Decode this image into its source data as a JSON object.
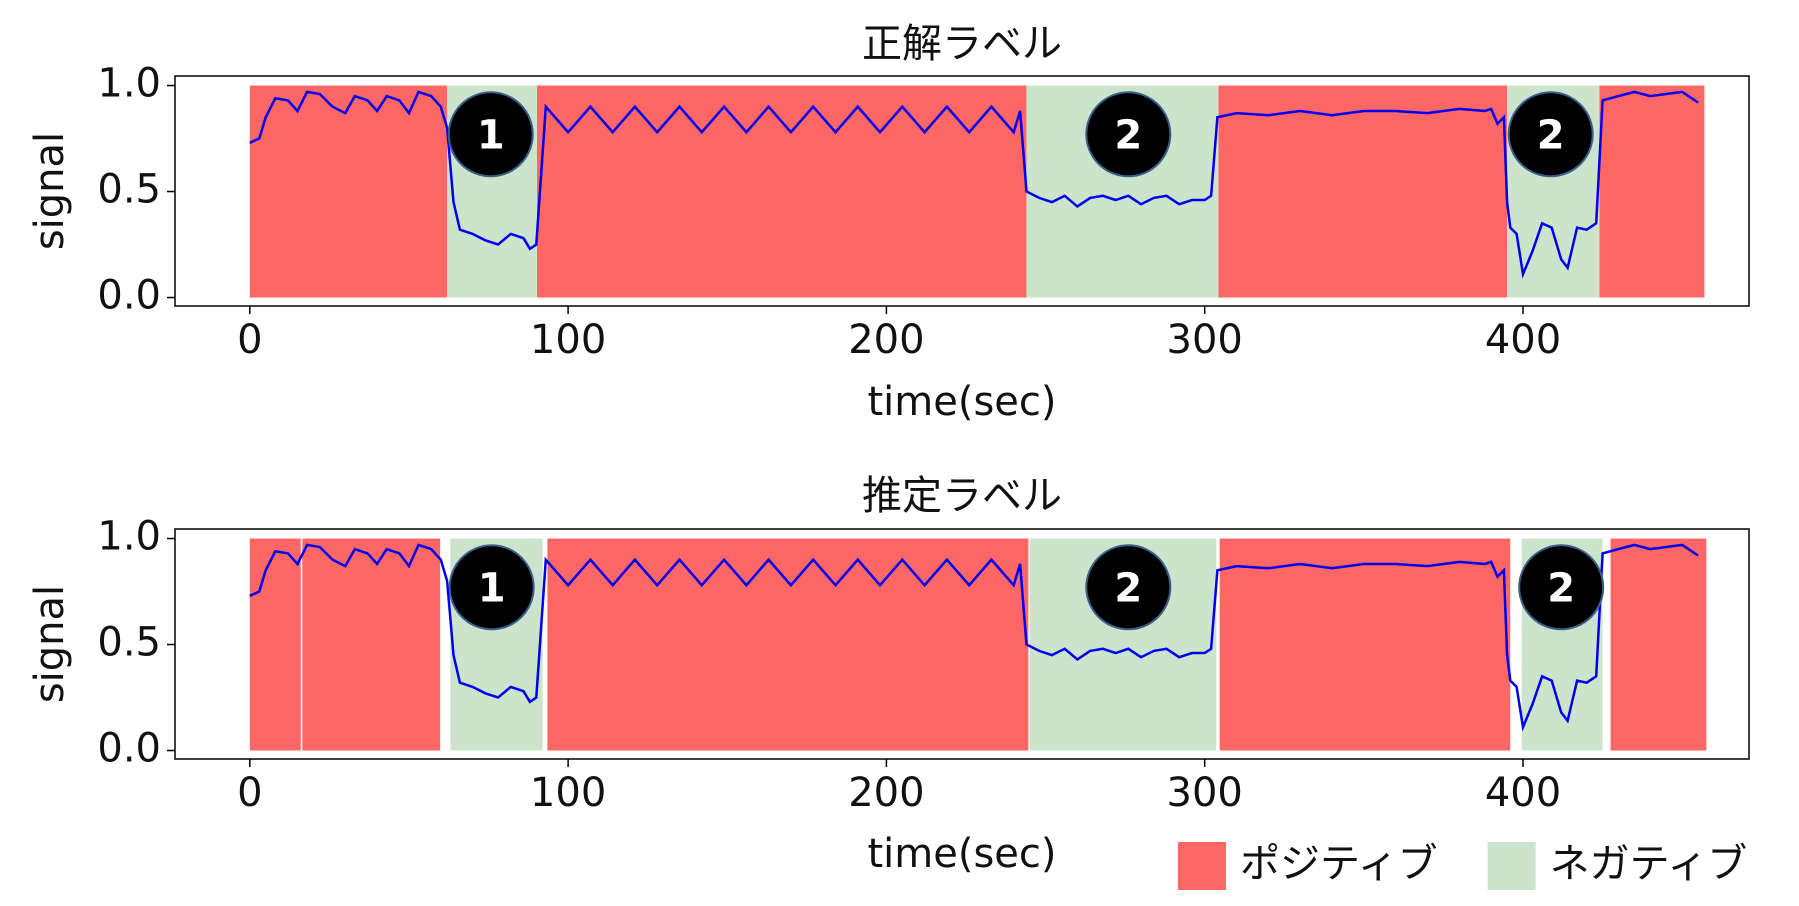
{
  "chart_data": [
    {
      "type": "line",
      "title": "正解ラベル",
      "xlabel": "time(sec)",
      "ylabel": "signal",
      "xlim": [
        -23.5,
        471
      ],
      "ylim": [
        -0.04,
        1.045
      ],
      "xticks": [
        0,
        100,
        200,
        300,
        400
      ],
      "yticks": [
        {
          "value": 0,
          "label": "0.0"
        },
        {
          "value": 0.5,
          "label": "0.5"
        },
        {
          "value": 1,
          "label": "1.0"
        }
      ],
      "regions": [
        {
          "color": "#ff6666",
          "ybounds": [
            0,
            1
          ],
          "spans": [
            [
              0,
              62
            ],
            [
              90.2,
              244
            ],
            [
              304.3,
              395
            ],
            [
              424,
              457
            ]
          ]
        },
        {
          "color": "#cce4cc",
          "ybounds": [
            0,
            1
          ],
          "spans": [
            [
              62,
              90.2
            ],
            [
              244,
              304.3
            ],
            [
              395,
              424
            ]
          ]
        }
      ],
      "line": {
        "color": "#0000ee",
        "x": [
          0,
          3,
          5,
          8,
          12,
          15,
          18,
          22,
          26,
          30,
          33,
          37,
          40,
          43,
          47,
          50,
          53,
          57,
          60,
          62,
          64,
          66,
          70,
          74,
          78,
          82,
          86,
          88,
          90,
          93,
          100,
          107,
          114,
          121,
          128,
          135,
          142,
          149,
          156,
          163,
          170,
          177,
          184,
          191,
          198,
          205,
          212,
          219,
          226,
          233,
          240,
          242,
          244,
          248,
          252,
          256,
          260,
          264,
          268,
          272,
          276,
          280,
          284,
          288,
          292,
          296,
          300,
          302,
          304,
          310,
          320,
          330,
          340,
          350,
          360,
          370,
          380,
          388,
          390,
          392,
          394,
          395,
          396,
          398,
          400,
          403,
          406,
          409,
          412,
          414,
          417,
          420,
          423,
          425,
          430,
          435,
          440,
          445,
          450,
          455
        ],
        "values": [
          0.73,
          0.75,
          0.85,
          0.94,
          0.93,
          0.88,
          0.97,
          0.96,
          0.9,
          0.87,
          0.95,
          0.93,
          0.88,
          0.95,
          0.93,
          0.87,
          0.97,
          0.95,
          0.9,
          0.8,
          0.45,
          0.32,
          0.3,
          0.27,
          0.25,
          0.3,
          0.28,
          0.23,
          0.25,
          0.9,
          0.78,
          0.9,
          0.78,
          0.9,
          0.78,
          0.9,
          0.78,
          0.9,
          0.78,
          0.9,
          0.78,
          0.9,
          0.78,
          0.9,
          0.78,
          0.9,
          0.78,
          0.9,
          0.78,
          0.9,
          0.78,
          0.88,
          0.5,
          0.47,
          0.45,
          0.48,
          0.43,
          0.47,
          0.48,
          0.46,
          0.48,
          0.44,
          0.47,
          0.48,
          0.44,
          0.46,
          0.46,
          0.48,
          0.85,
          0.87,
          0.86,
          0.88,
          0.86,
          0.88,
          0.88,
          0.87,
          0.89,
          0.88,
          0.89,
          0.82,
          0.85,
          0.45,
          0.33,
          0.3,
          0.11,
          0.22,
          0.35,
          0.33,
          0.18,
          0.14,
          0.33,
          0.32,
          0.35,
          0.93,
          0.95,
          0.97,
          0.95,
          0.96,
          0.97,
          0.92
        ]
      },
      "annotations": [
        {
          "text": "1",
          "x": 75.7,
          "y": 0.77
        },
        {
          "text": "2",
          "x": 276,
          "y": 0.77
        },
        {
          "text": "2",
          "x": 408.7,
          "y": 0.77
        }
      ]
    },
    {
      "type": "line",
      "title": "推定ラベル",
      "xlabel": "time(sec)",
      "ylabel": "signal",
      "xlim": [
        -23.5,
        471
      ],
      "ylim": [
        -0.04,
        1.045
      ],
      "xticks": [
        0,
        100,
        200,
        300,
        400
      ],
      "yticks": [
        {
          "value": 0,
          "label": "0.0"
        },
        {
          "value": 0.5,
          "label": "0.5"
        },
        {
          "value": 1,
          "label": "1.0"
        }
      ],
      "legend": true,
      "regions": [
        {
          "name": "ポジティブ",
          "color": "#ff6666",
          "ybounds": [
            0,
            1
          ],
          "spans": [
            [
              0,
              16
            ],
            [
              16.5,
              59.8
            ],
            [
              93.5,
              244.6
            ],
            [
              304.7,
              396
            ],
            [
              427.5,
              457.6
            ]
          ]
        },
        {
          "name": "ネガティブ",
          "color": "#cce4cc",
          "ybounds": [
            0,
            1
          ],
          "spans": [
            [
              63,
              92
            ],
            [
              245,
              303.6
            ],
            [
              399.6,
              425
            ]
          ]
        }
      ],
      "line": {
        "color": "#0000ee",
        "x": [
          0,
          3,
          5,
          8,
          12,
          15,
          18,
          22,
          26,
          30,
          33,
          37,
          40,
          43,
          47,
          50,
          53,
          57,
          60,
          62,
          64,
          66,
          70,
          74,
          78,
          82,
          86,
          88,
          90,
          93,
          100,
          107,
          114,
          121,
          128,
          135,
          142,
          149,
          156,
          163,
          170,
          177,
          184,
          191,
          198,
          205,
          212,
          219,
          226,
          233,
          240,
          242,
          244,
          248,
          252,
          256,
          260,
          264,
          268,
          272,
          276,
          280,
          284,
          288,
          292,
          296,
          300,
          302,
          304,
          310,
          320,
          330,
          340,
          350,
          360,
          370,
          380,
          388,
          390,
          392,
          394,
          395,
          396,
          398,
          400,
          403,
          406,
          409,
          412,
          414,
          417,
          420,
          423,
          425,
          430,
          435,
          440,
          445,
          450,
          455
        ],
        "values": [
          0.73,
          0.75,
          0.85,
          0.94,
          0.93,
          0.88,
          0.97,
          0.96,
          0.9,
          0.87,
          0.95,
          0.93,
          0.88,
          0.95,
          0.93,
          0.87,
          0.97,
          0.95,
          0.9,
          0.8,
          0.45,
          0.32,
          0.3,
          0.27,
          0.25,
          0.3,
          0.28,
          0.23,
          0.25,
          0.9,
          0.78,
          0.9,
          0.78,
          0.9,
          0.78,
          0.9,
          0.78,
          0.9,
          0.78,
          0.9,
          0.78,
          0.9,
          0.78,
          0.9,
          0.78,
          0.9,
          0.78,
          0.9,
          0.78,
          0.9,
          0.78,
          0.88,
          0.5,
          0.47,
          0.45,
          0.48,
          0.43,
          0.47,
          0.48,
          0.46,
          0.48,
          0.44,
          0.47,
          0.48,
          0.44,
          0.46,
          0.46,
          0.48,
          0.85,
          0.87,
          0.86,
          0.88,
          0.86,
          0.88,
          0.88,
          0.87,
          0.89,
          0.88,
          0.89,
          0.82,
          0.85,
          0.45,
          0.33,
          0.3,
          0.11,
          0.22,
          0.35,
          0.33,
          0.18,
          0.14,
          0.33,
          0.32,
          0.35,
          0.93,
          0.95,
          0.97,
          0.95,
          0.96,
          0.97,
          0.92
        ]
      },
      "annotations": [
        {
          "text": "1",
          "x": 76,
          "y": 0.77
        },
        {
          "text": "2",
          "x": 276,
          "y": 0.77
        },
        {
          "text": "2",
          "x": 412,
          "y": 0.77
        }
      ]
    }
  ]
}
